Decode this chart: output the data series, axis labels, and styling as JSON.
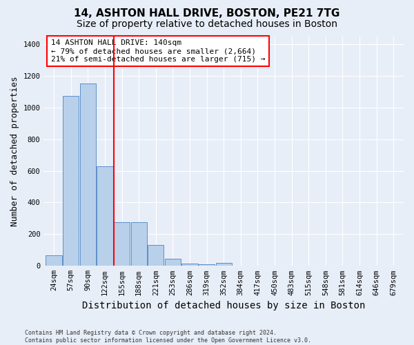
{
  "title1": "14, ASHTON HALL DRIVE, BOSTON, PE21 7TG",
  "title2": "Size of property relative to detached houses in Boston",
  "xlabel": "Distribution of detached houses by size in Boston",
  "ylabel": "Number of detached properties",
  "footnote": "Contains HM Land Registry data © Crown copyright and database right 2024.\nContains public sector information licensed under the Open Government Licence v3.0.",
  "bin_labels": [
    "24sqm",
    "57sqm",
    "90sqm",
    "122sqm",
    "155sqm",
    "188sqm",
    "221sqm",
    "253sqm",
    "286sqm",
    "319sqm",
    "352sqm",
    "384sqm",
    "417sqm",
    "450sqm",
    "483sqm",
    "515sqm",
    "548sqm",
    "581sqm",
    "614sqm",
    "646sqm",
    "679sqm"
  ],
  "bar_values": [
    65,
    1075,
    1150,
    630,
    275,
    275,
    130,
    45,
    15,
    10,
    20,
    0,
    0,
    0,
    0,
    0,
    0,
    0,
    0,
    0,
    0
  ],
  "bar_color": "#b8d0ea",
  "bar_edge_color": "#5b8fc9",
  "vline_color": "red",
  "annotation_text": "14 ASHTON HALL DRIVE: 140sqm\n← 79% of detached houses are smaller (2,664)\n21% of semi-detached houses are larger (715) →",
  "annotation_box_color": "white",
  "annotation_box_edge_color": "red",
  "ylim": [
    0,
    1450
  ],
  "yticks": [
    0,
    200,
    400,
    600,
    800,
    1000,
    1200,
    1400
  ],
  "background_color": "#e8eef8",
  "plot_bg_color": "#e8eef8",
  "grid_color": "white",
  "title_fontsize": 11,
  "subtitle_fontsize": 10,
  "axis_label_fontsize": 9,
  "tick_fontsize": 7.5,
  "annotation_fontsize": 8
}
